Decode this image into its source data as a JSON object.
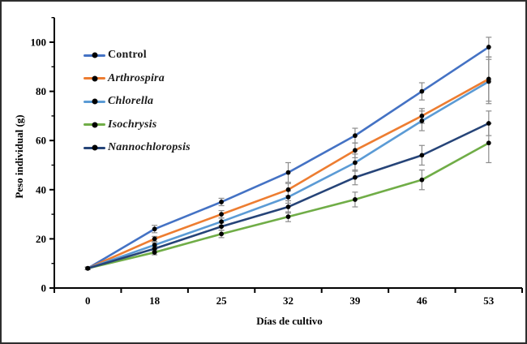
{
  "figure": {
    "background": "#ffffff",
    "border_color": "#2e2e2e"
  },
  "chart_data": {
    "type": "line",
    "title": "",
    "xlabel": "Días de cultivo",
    "ylabel": "Peso individual (g)",
    "categories": [
      "0",
      "18",
      "25",
      "32",
      "39",
      "46",
      "53"
    ],
    "ylim": [
      0,
      100
    ],
    "y_major_ticks": [
      0,
      20,
      40,
      60,
      80,
      100
    ],
    "y_minor_ticks": [
      10,
      30,
      50,
      70,
      90,
      110
    ],
    "grid": false,
    "legend_position": "upper-left-inside",
    "marker": "filled-black-circle",
    "marker_color": "#000000",
    "error_bar_color": "#8c8c8c",
    "axis_color": "#000000",
    "series": [
      {
        "name": "Control",
        "italic": false,
        "color": "#4472C4",
        "values": [
          8,
          24,
          35,
          47,
          62,
          80,
          98
        ],
        "errors": [
          0.5,
          1.5,
          1.5,
          4,
          3,
          3.5,
          4
        ]
      },
      {
        "name": "Arthrospira",
        "italic": true,
        "color": "#ED7D31",
        "values": [
          8,
          20,
          30,
          40,
          56,
          70,
          85
        ],
        "errors": [
          0.5,
          1,
          1.5,
          2.5,
          3,
          3,
          9
        ]
      },
      {
        "name": "Chlorella",
        "italic": true,
        "color": "#5B9BD5",
        "values": [
          8,
          17.5,
          27,
          37,
          51,
          68,
          84
        ],
        "errors": [
          0.5,
          1,
          1.5,
          2.5,
          3.5,
          4,
          9
        ]
      },
      {
        "name": "Isochrysis",
        "italic": true,
        "color": "#70AD47",
        "values": [
          8,
          14.5,
          22,
          29,
          36,
          44,
          59
        ],
        "errors": [
          0.5,
          1,
          1.5,
          2,
          3,
          4,
          8
        ]
      },
      {
        "name": "Nannochloropsis",
        "italic": true,
        "color": "#264478",
        "values": [
          8,
          16,
          25,
          33,
          45,
          54,
          67
        ],
        "errors": [
          0.5,
          1,
          1.5,
          2.5,
          3,
          4,
          5
        ]
      }
    ]
  }
}
